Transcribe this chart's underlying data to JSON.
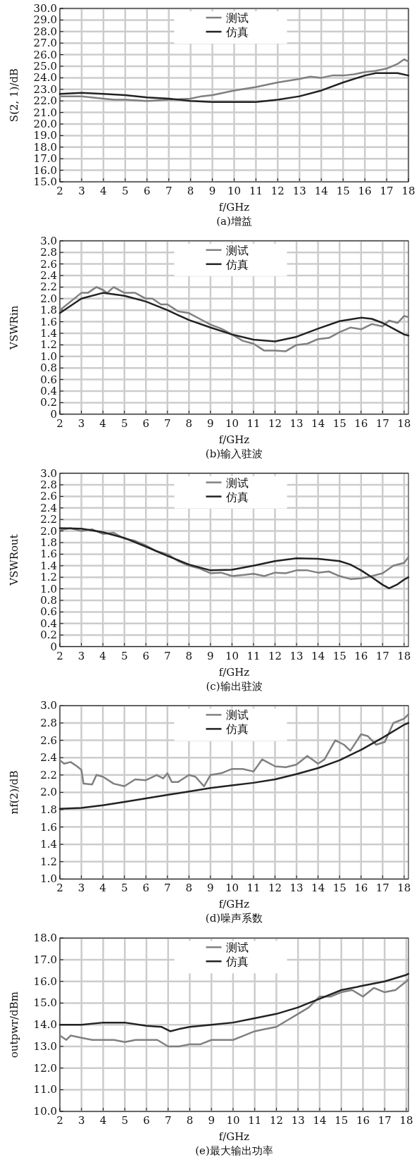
{
  "chart_data": [
    {
      "type": "line",
      "title": "(a)增益",
      "xlabel": "f/GHz",
      "ylabel": "S(2, 1)/dB",
      "xlim": [
        2,
        18
      ],
      "ylim": [
        15,
        30
      ],
      "xticks": [
        2,
        3,
        4,
        5,
        6,
        7,
        8,
        9,
        10,
        11,
        12,
        13,
        14,
        15,
        16,
        17,
        18
      ],
      "yticks": [
        {
          "value": 15,
          "label": "15.0"
        },
        {
          "value": 16,
          "label": "16.0"
        },
        {
          "value": 17,
          "label": "17.0"
        },
        {
          "value": 18,
          "label": "18.0"
        },
        {
          "value": 19,
          "label": "19.0"
        },
        {
          "value": 20,
          "label": "20.0"
        },
        {
          "value": 21,
          "label": "21.0"
        },
        {
          "value": 22,
          "label": "22.0"
        },
        {
          "value": 23,
          "label": "23.0"
        },
        {
          "value": 24,
          "label": "24.0"
        },
        {
          "value": 25,
          "label": "25.0"
        },
        {
          "value": 26,
          "label": "26.0"
        },
        {
          "value": 27,
          "label": "27.0"
        },
        {
          "value": 28,
          "label": "28.0"
        },
        {
          "value": 29,
          "label": "29.0"
        },
        {
          "value": 30,
          "label": "30.0"
        }
      ],
      "grid": true,
      "legend": "top",
      "series": [
        {
          "name": "测试",
          "color": "#808080",
          "x": [
            2,
            3,
            4,
            4.5,
            5,
            6,
            7,
            8,
            8.5,
            9,
            10,
            11,
            12,
            13,
            13.5,
            14,
            14.5,
            15,
            15.5,
            16,
            16.5,
            17,
            17.5,
            17.8,
            18
          ],
          "values": [
            22.4,
            22.4,
            22.2,
            22.1,
            22.1,
            22.0,
            22.1,
            22.2,
            22.4,
            22.5,
            22.9,
            23.2,
            23.6,
            23.9,
            24.1,
            24.0,
            24.2,
            24.2,
            24.3,
            24.5,
            24.6,
            24.8,
            25.2,
            25.6,
            25.4
          ]
        },
        {
          "name": "仿真",
          "color": "#222222",
          "x": [
            2,
            3,
            4,
            5,
            6,
            7,
            8,
            9,
            10,
            11,
            12,
            13,
            14,
            15,
            16,
            16.5,
            17,
            17.5,
            18
          ],
          "values": [
            22.6,
            22.7,
            22.6,
            22.5,
            22.3,
            22.2,
            22.0,
            21.9,
            21.9,
            21.9,
            22.1,
            22.4,
            22.9,
            23.6,
            24.2,
            24.4,
            24.4,
            24.4,
            24.2
          ]
        }
      ]
    },
    {
      "type": "line",
      "title": "(b)输入驻波",
      "xlabel": "f/GHz",
      "ylabel": "VSWRin",
      "xlim": [
        2,
        18.2
      ],
      "ylim": [
        0,
        3
      ],
      "xticks": [
        2,
        3,
        4,
        5,
        6,
        7,
        8,
        9,
        10,
        11,
        12,
        13,
        14,
        15,
        16,
        17,
        18
      ],
      "yticks": [
        0,
        0.2,
        0.4,
        0.6,
        0.8,
        {
          "value": 1,
          "label": "1.0"
        },
        1.2,
        1.4,
        1.6,
        1.8,
        {
          "value": 2,
          "label": "2.0"
        },
        2.2,
        2.4,
        2.6,
        2.8,
        {
          "value": 3,
          "label": "3.0"
        }
      ],
      "grid": true,
      "legend": "top",
      "series": [
        {
          "name": "测试",
          "color": "#808080",
          "x": [
            2,
            2.5,
            3,
            3.3,
            3.7,
            4,
            4.2,
            4.5,
            5,
            5.5,
            6,
            6.3,
            6.7,
            7,
            7.5,
            8,
            8.5,
            9,
            9.5,
            10,
            10.5,
            11,
            11.5,
            12,
            12.5,
            13,
            13.5,
            14,
            14.5,
            15,
            15.5,
            16,
            16.5,
            17,
            17.3,
            17.7,
            18,
            18.2
          ],
          "values": [
            1.8,
            1.95,
            2.1,
            2.1,
            2.2,
            2.15,
            2.1,
            2.2,
            2.1,
            2.1,
            2.0,
            2.0,
            1.9,
            1.9,
            1.78,
            1.75,
            1.65,
            1.55,
            1.48,
            1.38,
            1.27,
            1.22,
            1.1,
            1.1,
            1.09,
            1.2,
            1.22,
            1.3,
            1.32,
            1.42,
            1.5,
            1.47,
            1.56,
            1.52,
            1.62,
            1.58,
            1.7,
            1.68
          ]
        },
        {
          "name": "仿真",
          "color": "#222222",
          "x": [
            2,
            3,
            4,
            5,
            6,
            7,
            8,
            9,
            10,
            11,
            12,
            13,
            14,
            15,
            16,
            16.5,
            17,
            17.5,
            18,
            18.2
          ],
          "values": [
            1.75,
            2.0,
            2.1,
            2.05,
            1.95,
            1.8,
            1.63,
            1.5,
            1.38,
            1.29,
            1.26,
            1.34,
            1.48,
            1.61,
            1.67,
            1.65,
            1.58,
            1.48,
            1.38,
            1.36
          ]
        }
      ]
    },
    {
      "type": "line",
      "title": "(c)输出驻波",
      "xlabel": "f/GHz",
      "ylabel": "VSWRout",
      "xlim": [
        2,
        18.2
      ],
      "ylim": [
        0,
        3
      ],
      "xticks": [
        2,
        3,
        4,
        5,
        6,
        7,
        8,
        9,
        10,
        11,
        12,
        13,
        14,
        15,
        16,
        17,
        18
      ],
      "yticks": [
        0,
        0.2,
        0.4,
        0.6,
        0.8,
        {
          "value": 1,
          "label": "1.0"
        },
        1.2,
        1.4,
        1.6,
        1.8,
        {
          "value": 2,
          "label": "2.0"
        },
        2.2,
        2.4,
        2.6,
        2.8,
        {
          "value": 3,
          "label": "3.0"
        }
      ],
      "grid": true,
      "legend": "top",
      "series": [
        {
          "name": "测试",
          "color": "#808080",
          "x": [
            2,
            2.5,
            3,
            3.5,
            4,
            4.5,
            5,
            5.5,
            6,
            6.5,
            7,
            7.5,
            8,
            8.5,
            9,
            9.5,
            10,
            10.5,
            11,
            11.5,
            12,
            12.5,
            13,
            13.5,
            14,
            14.5,
            15,
            15.5,
            16,
            16.5,
            17,
            17.5,
            18,
            18.2
          ],
          "values": [
            2.02,
            2.05,
            2.0,
            2.03,
            1.95,
            1.97,
            1.87,
            1.83,
            1.75,
            1.65,
            1.6,
            1.48,
            1.4,
            1.35,
            1.27,
            1.28,
            1.22,
            1.24,
            1.26,
            1.22,
            1.28,
            1.27,
            1.32,
            1.32,
            1.28,
            1.3,
            1.22,
            1.17,
            1.18,
            1.22,
            1.27,
            1.4,
            1.45,
            1.55
          ]
        },
        {
          "name": "仿真",
          "color": "#222222",
          "x": [
            2,
            3,
            4,
            5,
            6,
            7,
            8,
            9,
            10,
            11,
            12,
            13,
            14,
            15,
            15.5,
            16,
            16.5,
            17,
            17.3,
            17.7,
            18,
            18.2
          ],
          "values": [
            2.05,
            2.04,
            1.98,
            1.88,
            1.73,
            1.57,
            1.42,
            1.32,
            1.33,
            1.4,
            1.48,
            1.53,
            1.52,
            1.48,
            1.42,
            1.32,
            1.2,
            1.07,
            1.01,
            1.08,
            1.16,
            1.2
          ]
        }
      ]
    },
    {
      "type": "line",
      "title": "(d)噪声系数",
      "xlabel": "f/GHz",
      "ylabel": "nf(2)/dB",
      "xlim": [
        2,
        18.2
      ],
      "ylim": [
        1,
        3
      ],
      "xticks": [
        2,
        3,
        4,
        5,
        6,
        7,
        8,
        9,
        10,
        11,
        12,
        13,
        14,
        15,
        16,
        17,
        18
      ],
      "yticks": [
        {
          "value": 1,
          "label": "1.0"
        },
        1.2,
        1.4,
        1.6,
        1.8,
        {
          "value": 2,
          "label": "2.0"
        },
        2.2,
        2.4,
        2.6,
        2.8,
        {
          "value": 3,
          "label": "3.0"
        }
      ],
      "grid": true,
      "legend": "top",
      "series": [
        {
          "name": "测试",
          "color": "#808080",
          "x": [
            2,
            2.2,
            2.5,
            2.8,
            3,
            3.1,
            3.5,
            3.7,
            4,
            4.5,
            5,
            5.5,
            6,
            6.5,
            6.8,
            7,
            7.2,
            7.5,
            8,
            8.3,
            8.7,
            9,
            9.5,
            10,
            10.5,
            11,
            11.4,
            12,
            12.5,
            13,
            13.5,
            14,
            14.3,
            14.8,
            15.2,
            15.5,
            16,
            16.3,
            16.7,
            17.1,
            17.5,
            18,
            18.2
          ],
          "values": [
            2.37,
            2.33,
            2.35,
            2.3,
            2.26,
            2.1,
            2.09,
            2.2,
            2.18,
            2.1,
            2.07,
            2.15,
            2.14,
            2.2,
            2.16,
            2.22,
            2.12,
            2.12,
            2.2,
            2.18,
            2.07,
            2.2,
            2.22,
            2.27,
            2.27,
            2.24,
            2.38,
            2.3,
            2.29,
            2.32,
            2.42,
            2.33,
            2.38,
            2.6,
            2.55,
            2.48,
            2.67,
            2.65,
            2.55,
            2.58,
            2.8,
            2.85,
            2.9
          ]
        },
        {
          "name": "仿真",
          "color": "#222222",
          "x": [
            2,
            3,
            4,
            5,
            6,
            7,
            8,
            9,
            10,
            11,
            12,
            13,
            14,
            15,
            16,
            17,
            18,
            18.2
          ],
          "values": [
            1.81,
            1.82,
            1.85,
            1.89,
            1.93,
            1.97,
            2.01,
            2.05,
            2.08,
            2.11,
            2.15,
            2.21,
            2.28,
            2.37,
            2.49,
            2.63,
            2.78,
            2.8
          ]
        }
      ]
    },
    {
      "type": "line",
      "title": "(e)最大输出功率",
      "xlabel": "f/GHz",
      "ylabel": "outpwr/dBm",
      "xlim": [
        2,
        18.1
      ],
      "ylim": [
        10,
        18
      ],
      "xticks": [
        2,
        3,
        4,
        5,
        6,
        7,
        8,
        9,
        10,
        11,
        12,
        13,
        14,
        15,
        16,
        17,
        18
      ],
      "yticks": [
        {
          "value": 10,
          "label": "10.0"
        },
        {
          "value": 11,
          "label": "11.0"
        },
        {
          "value": 12,
          "label": "12.0"
        },
        {
          "value": 13,
          "label": "13.0"
        },
        {
          "value": 14,
          "label": "14.0"
        },
        {
          "value": 15,
          "label": "15.0"
        },
        {
          "value": 16,
          "label": "16.0"
        },
        {
          "value": 17,
          "label": "17.0"
        },
        {
          "value": 18,
          "label": "18.0"
        }
      ],
      "grid": true,
      "legend": "top",
      "series": [
        {
          "name": "测试",
          "color": "#808080",
          "x": [
            2,
            2.3,
            2.5,
            3,
            3.5,
            4,
            4.5,
            5,
            5.5,
            6,
            6.5,
            7,
            7.5,
            8,
            8.5,
            9,
            9.5,
            10,
            10.5,
            11,
            11.5,
            12,
            12.5,
            13,
            13.5,
            14,
            14.5,
            15,
            15.5,
            16,
            16.5,
            17,
            17.5,
            18,
            18.1
          ],
          "values": [
            13.5,
            13.3,
            13.5,
            13.4,
            13.3,
            13.3,
            13.3,
            13.2,
            13.3,
            13.3,
            13.3,
            13.0,
            13.0,
            13.1,
            13.1,
            13.3,
            13.3,
            13.3,
            13.5,
            13.7,
            13.8,
            13.9,
            14.2,
            14.5,
            14.8,
            15.3,
            15.3,
            15.5,
            15.6,
            15.3,
            15.7,
            15.5,
            15.6,
            16.0,
            16.1
          ]
        },
        {
          "name": "仿真",
          "color": "#222222",
          "x": [
            2,
            3,
            4,
            5,
            6,
            6.7,
            7.1,
            7.5,
            8,
            9,
            10,
            11,
            12,
            13,
            13.5,
            14,
            15,
            16,
            17,
            18,
            18.1
          ],
          "values": [
            14.0,
            14.0,
            14.1,
            14.1,
            13.95,
            13.9,
            13.7,
            13.8,
            13.9,
            14.0,
            14.1,
            14.3,
            14.5,
            14.8,
            15.0,
            15.2,
            15.6,
            15.8,
            16.0,
            16.3,
            16.35
          ]
        }
      ]
    }
  ]
}
